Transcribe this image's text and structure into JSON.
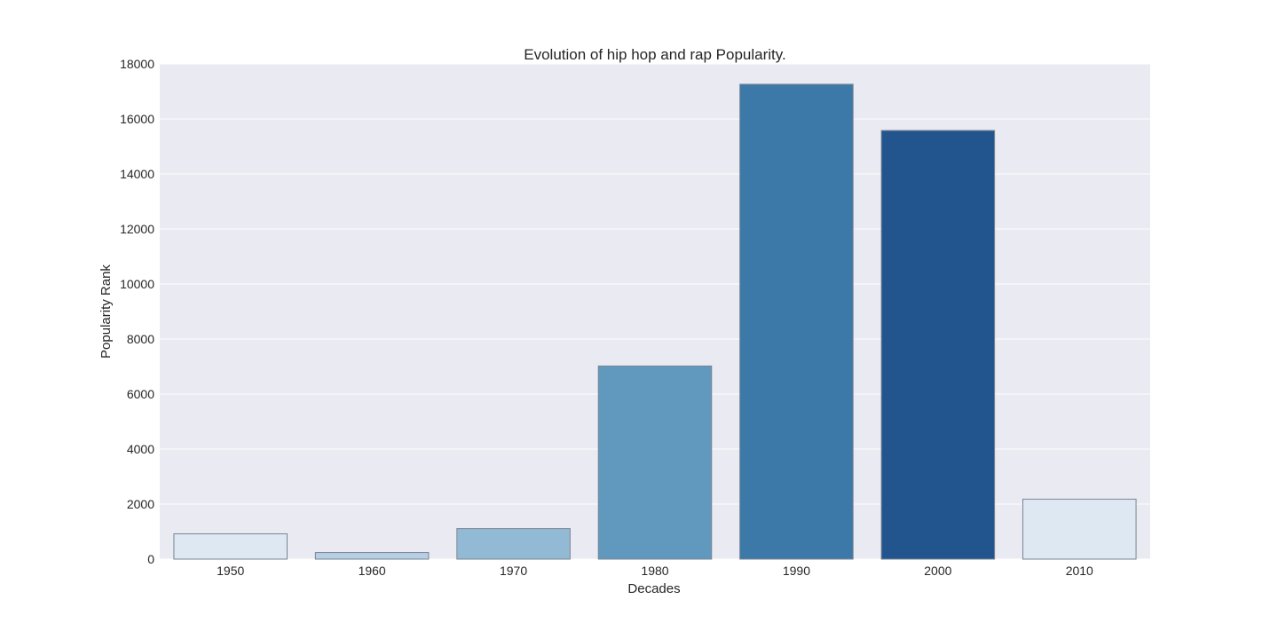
{
  "chart_data": {
    "type": "bar",
    "title": "Evolution of hip hop and rap Popularity.",
    "xlabel": "Decades",
    "ylabel": "Popularity Rank",
    "categories": [
      "1950",
      "1960",
      "1970",
      "1980",
      "1990",
      "2000",
      "2010"
    ],
    "values": [
      920,
      240,
      1110,
      7020,
      17260,
      15580,
      2180
    ],
    "ylim": [
      0,
      18000
    ],
    "yticks": [
      0,
      2000,
      4000,
      6000,
      8000,
      10000,
      12000,
      14000,
      16000,
      18000
    ],
    "grid": true,
    "colors": {
      "background": "#eaeaf2",
      "grid": "#ffffff",
      "bars": [
        "#dde8f3",
        "#b5cfe5",
        "#93bad4",
        "#6199be",
        "#3c79a9",
        "#22558e",
        "#dde8f3"
      ],
      "bar_edge": "#7a8593"
    }
  }
}
